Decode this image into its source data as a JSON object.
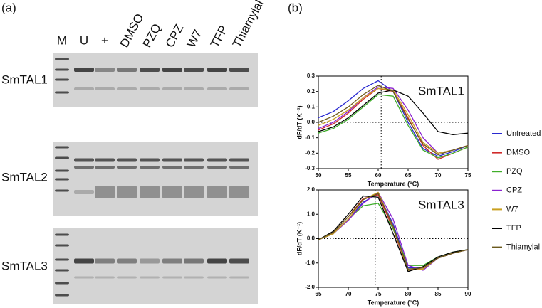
{
  "panel_a": {
    "label": "(a)",
    "lanes": [
      "M",
      "U",
      "+",
      "DMSO",
      "PZQ",
      "CPZ",
      "W7",
      "TFP",
      "Thiamylal"
    ],
    "rows": [
      "SmTAL1",
      "SmTAL2",
      "SmTAL3"
    ]
  },
  "panel_b_label": "(b)",
  "chart_data": [
    {
      "type": "line",
      "title": "SmTAL1",
      "x_label": "Temperature (°C)",
      "y_label": "dF/dT (K⁻¹)",
      "x": [
        50,
        52.5,
        55,
        57.5,
        60,
        62.5,
        65,
        67.5,
        70,
        72.5,
        75
      ],
      "xlim": [
        50,
        75
      ],
      "xticks": [
        50,
        55,
        60,
        65,
        70,
        75
      ],
      "ylim": [
        -0.3,
        0.3
      ],
      "yticks": [
        -0.3,
        -0.2,
        -0.1,
        {
          "value": 0,
          "label": "0.0"
        },
        0.1,
        0.2,
        0.3
      ],
      "vline": 60.5,
      "hline": 0,
      "series": [
        {
          "name": "Untreated",
          "color": "#2a2ad0",
          "values": [
            0.03,
            0.07,
            0.14,
            0.22,
            0.27,
            0.2,
            0.0,
            -0.17,
            -0.22,
            -0.19,
            -0.15
          ]
        },
        {
          "name": "DMSO",
          "color": "#d02a2a",
          "values": [
            -0.05,
            -0.01,
            0.06,
            0.15,
            0.22,
            0.2,
            0.03,
            -0.15,
            -0.24,
            -0.2,
            -0.16
          ]
        },
        {
          "name": "PZQ",
          "color": "#3fae2a",
          "values": [
            -0.07,
            -0.04,
            0.02,
            0.1,
            0.18,
            0.17,
            -0.02,
            -0.18,
            -0.23,
            -0.2,
            -0.16
          ]
        },
        {
          "name": "CPZ",
          "color": "#8a22d0",
          "values": [
            -0.04,
            0.0,
            0.07,
            0.16,
            0.23,
            0.22,
            0.08,
            -0.1,
            -0.2,
            -0.18,
            -0.15
          ]
        },
        {
          "name": "W7",
          "color": "#c9a020",
          "values": [
            -0.02,
            0.02,
            0.08,
            0.16,
            0.22,
            0.21,
            0.05,
            -0.13,
            -0.2,
            -0.18,
            -0.15
          ]
        },
        {
          "name": "TFP",
          "color": "#000000",
          "values": [
            -0.06,
            -0.03,
            0.03,
            0.11,
            0.19,
            0.21,
            0.17,
            0.06,
            -0.06,
            -0.08,
            -0.07
          ]
        },
        {
          "name": "Thiamylal",
          "color": "#6b5a1e",
          "values": [
            0.0,
            0.04,
            0.1,
            0.18,
            0.24,
            0.2,
            0.02,
            -0.14,
            -0.21,
            -0.18,
            -0.15
          ]
        }
      ]
    },
    {
      "type": "line",
      "title": "SmTAL3",
      "x_label": "Temperature (°C)",
      "y_label": "dF/dT (K⁻¹)",
      "x": [
        65,
        67.5,
        70,
        72.5,
        75,
        77.5,
        80,
        82.5,
        85,
        87.5,
        90
      ],
      "xlim": [
        65,
        90
      ],
      "xticks": [
        65,
        70,
        75,
        80,
        85,
        90
      ],
      "ylim": [
        -2,
        2
      ],
      "yticks": [
        {
          "value": -2,
          "label": "-2.0"
        },
        {
          "value": -1,
          "label": "-1.0"
        },
        {
          "value": 0,
          "label": "0.0"
        },
        {
          "value": 1,
          "label": "1.0"
        },
        {
          "value": 2,
          "label": "2.0"
        }
      ],
      "vline": 74.5,
      "hline": 0,
      "series": [
        {
          "color": "#2a2ad0",
          "values": [
            -0.05,
            0.2,
            0.8,
            1.5,
            1.85,
            0.6,
            -1.2,
            -1.2,
            -0.8,
            -0.6,
            -0.45
          ]
        },
        {
          "color": "#d02a2a",
          "values": [
            -0.05,
            0.25,
            0.9,
            1.65,
            1.8,
            0.4,
            -1.3,
            -1.2,
            -0.8,
            -0.6,
            -0.45
          ]
        },
        {
          "color": "#3fae2a",
          "values": [
            -0.05,
            0.2,
            0.8,
            1.35,
            1.45,
            0.4,
            -1.1,
            -1.1,
            -0.75,
            -0.55,
            -0.45
          ]
        },
        {
          "color": "#8a22d0",
          "values": [
            -0.05,
            0.2,
            0.75,
            1.45,
            1.9,
            0.8,
            -1.1,
            -1.3,
            -0.8,
            -0.6,
            -0.45
          ]
        },
        {
          "color": "#c9a020",
          "values": [
            -0.05,
            0.2,
            0.8,
            1.6,
            1.9,
            0.5,
            -1.3,
            -1.25,
            -0.8,
            -0.6,
            -0.45
          ]
        },
        {
          "color": "#000000",
          "values": [
            -0.05,
            0.3,
            1.0,
            1.75,
            1.7,
            0.2,
            -1.35,
            -1.15,
            -0.75,
            -0.55,
            -0.45
          ]
        },
        {
          "color": "#6b5a1e",
          "values": [
            -0.05,
            0.25,
            0.9,
            1.6,
            1.85,
            0.5,
            -1.25,
            -1.2,
            -0.8,
            -0.6,
            -0.45
          ]
        }
      ]
    }
  ]
}
